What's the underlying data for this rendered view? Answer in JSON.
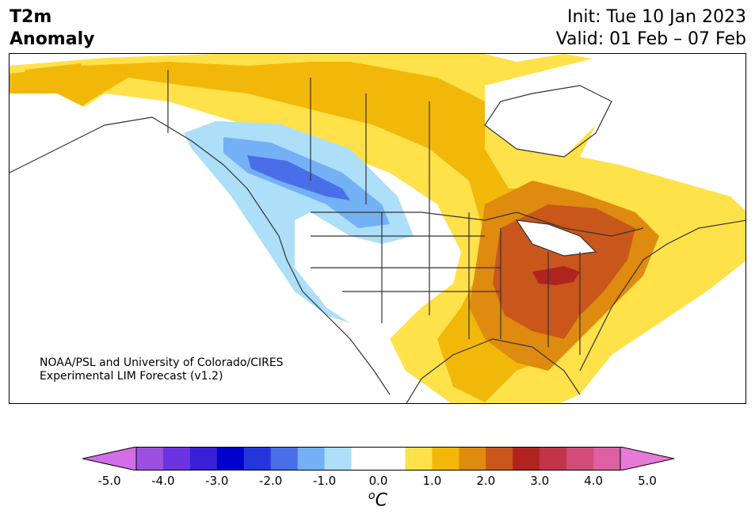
{
  "header": {
    "title_line1": "T2m",
    "title_line2": "Anomaly",
    "init_label": "Init: Tue 10 Jan 2023",
    "valid_label": "Valid: 01 Feb – 07 Feb"
  },
  "credit": {
    "line1": "NOAA/PSL and University of Colorado/CIRES",
    "line2": "Experimental LIM Forecast (v1.2)"
  },
  "colorbar": {
    "ticks": [
      "-5.0",
      "-4.0",
      "-3.0",
      "-2.0",
      "-1.0",
      "0.0",
      "1.0",
      "2.0",
      "3.0",
      "4.0",
      "5.0"
    ],
    "unit_sup": "o",
    "unit": "C",
    "colors": [
      "#d36ee8",
      "#9d50e0",
      "#6b34e0",
      "#3a1fd6",
      "#0000cc",
      "#2537dc",
      "#4a6ee8",
      "#74b0f4",
      "#addff9",
      "#ffffff",
      "#ffffff",
      "#ffe14a",
      "#f1b80a",
      "#de8b0f",
      "#c9561a",
      "#b0231f",
      "#c23548",
      "#d14c79",
      "#dd60a5",
      "#e77ad8"
    ]
  },
  "map": {
    "region": "North America",
    "field": "2 m temperature anomaly"
  }
}
